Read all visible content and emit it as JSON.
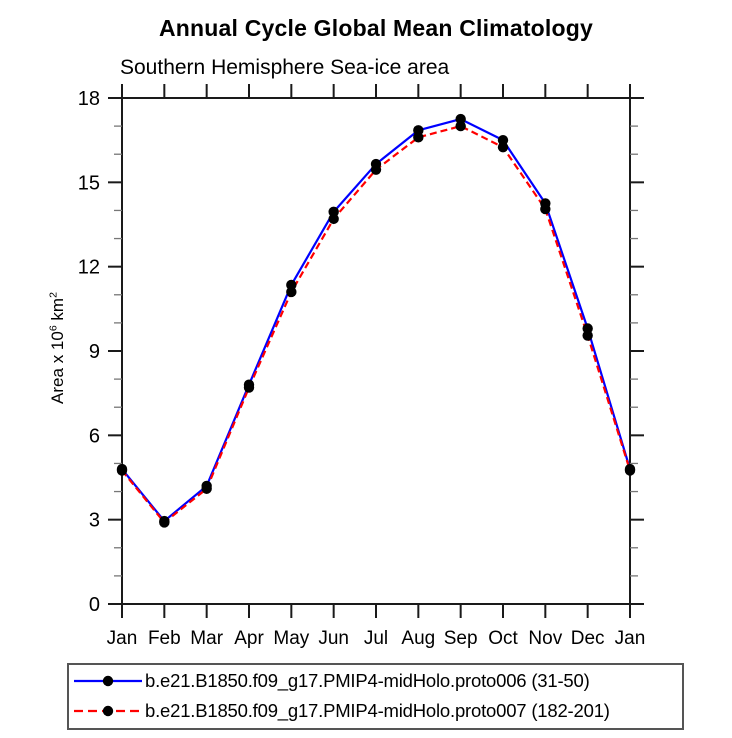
{
  "chart_data": {
    "type": "line",
    "title": "Annual Cycle Global Mean Climatology",
    "subtitle": "Southern Hemisphere Sea-ice area",
    "xlabel": "",
    "ylabel": "Area x 10^6 km^2",
    "ylabel_parts": [
      {
        "t": "Area x 10"
      },
      {
        "t": "6",
        "sup": true
      },
      {
        "t": " km"
      },
      {
        "t": "2",
        "sup": true
      }
    ],
    "categories": [
      "Jan",
      "Feb",
      "Mar",
      "Apr",
      "May",
      "Jun",
      "Jul",
      "Aug",
      "Sep",
      "Oct",
      "Nov",
      "Dec",
      "Jan"
    ],
    "ylim": [
      0,
      18
    ],
    "y_major_ticks": [
      0,
      3,
      6,
      9,
      12,
      15,
      18
    ],
    "y_minor_step": 1,
    "grid": false,
    "legend_position": "bottom",
    "axis_color": "#1a1a1a",
    "series": [
      {
        "name": "b.e21.B1850.f09_g17.PMIP4-midHolo.proto006 (31-50)",
        "color": "#0000ff",
        "line_style": "solid",
        "marker": "circle",
        "marker_color": "#000000",
        "values": [
          4.8,
          2.95,
          4.2,
          7.8,
          11.35,
          13.95,
          15.65,
          16.85,
          17.25,
          16.5,
          14.25,
          9.8,
          4.8
        ]
      },
      {
        "name": "b.e21.B1850.f09_g17.PMIP4-midHolo.proto007 (182-201)",
        "color": "#ff0000",
        "line_style": "dashed",
        "marker": "circle",
        "marker_color": "#000000",
        "values": [
          4.75,
          2.9,
          4.1,
          7.7,
          11.1,
          13.7,
          15.45,
          16.6,
          17.0,
          16.25,
          14.05,
          9.55,
          4.75
        ]
      }
    ]
  }
}
